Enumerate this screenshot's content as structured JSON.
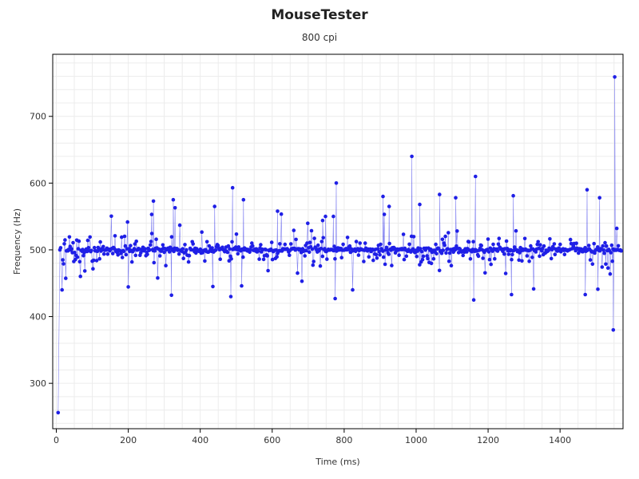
{
  "colors": {
    "series": "#1f1fe6",
    "grid": "#ececec",
    "axis": "#000000",
    "background": "#ffffff"
  },
  "chart_data": {
    "type": "scatter",
    "title": "MouseTester",
    "subtitle": "800 cpi",
    "xlabel": "Time (ms)",
    "ylabel": "Frequency (Hz)",
    "xlim": [
      -10,
      1575
    ],
    "ylim": [
      232,
      793
    ],
    "xticks": [
      0,
      200,
      400,
      600,
      800,
      1000,
      1200,
      1400
    ],
    "yticks": [
      300,
      400,
      500,
      600,
      700
    ],
    "grid": true,
    "legend": "none",
    "series": [
      {
        "line": true,
        "seed": 7,
        "count": 760,
        "x_range": [
          0,
          1570
        ],
        "center": 500,
        "points": [
          [
            5,
            256
          ],
          [
            10,
            500
          ],
          [
            12,
            503
          ],
          [
            16,
            440
          ],
          [
            265,
            553
          ],
          [
            270,
            573
          ],
          [
            320,
            432
          ],
          [
            325,
            575
          ],
          [
            330,
            563
          ],
          [
            435,
            445
          ],
          [
            440,
            565
          ],
          [
            485,
            430
          ],
          [
            490,
            593
          ],
          [
            515,
            446
          ],
          [
            520,
            575
          ],
          [
            615,
            558
          ],
          [
            740,
            544
          ],
          [
            748,
            550
          ],
          [
            770,
            550
          ],
          [
            775,
            427
          ],
          [
            778,
            600
          ],
          [
            908,
            580
          ],
          [
            925,
            565
          ],
          [
            988,
            640
          ],
          [
            1010,
            568
          ],
          [
            1065,
            583
          ],
          [
            1110,
            578
          ],
          [
            1160,
            425
          ],
          [
            1165,
            610
          ],
          [
            1265,
            433
          ],
          [
            1270,
            581
          ],
          [
            1470,
            433
          ],
          [
            1475,
            590
          ],
          [
            1505,
            441
          ],
          [
            1510,
            578
          ],
          [
            1548,
            380
          ],
          [
            1552,
            759
          ]
        ]
      }
    ]
  }
}
